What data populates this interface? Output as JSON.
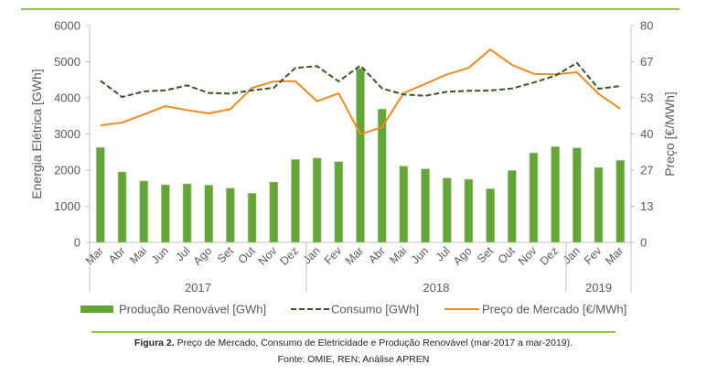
{
  "chart_data": {
    "type": "bar",
    "combo": [
      "bar",
      "line",
      "line"
    ],
    "categories": [
      "Mar",
      "Abr",
      "Mai",
      "Jun",
      "Jul",
      "Ago",
      "Set",
      "Out",
      "Nov",
      "Dez",
      "Jan",
      "Fev",
      "Mar",
      "Abr",
      "Mai",
      "Jun",
      "Jul",
      "Ago",
      "Set",
      "Out",
      "Nov",
      "Dez",
      "Jan",
      "Fev",
      "Mar"
    ],
    "year_groups": [
      {
        "label": "2017",
        "count": 10
      },
      {
        "label": "2018",
        "count": 12
      },
      {
        "label": "2019",
        "count": 3
      }
    ],
    "series": [
      {
        "name": "Produção Renovável [GWh]",
        "type": "bar",
        "axis": "left",
        "color": "#64a537",
        "values": [
          2630,
          1950,
          1700,
          1595,
          1620,
          1585,
          1500,
          1360,
          1670,
          2295,
          2335,
          2235,
          4810,
          3690,
          2110,
          2035,
          1780,
          1745,
          1485,
          1990,
          2475,
          2650,
          2615,
          2070,
          2270
        ]
      },
      {
        "name": "Consumo [GWh]",
        "type": "line",
        "style": "dashed",
        "axis": "left",
        "color": "#375623",
        "values": [
          4473,
          4025,
          4177,
          4210,
          4347,
          4135,
          4118,
          4210,
          4278,
          4828,
          4878,
          4455,
          4894,
          4261,
          4093,
          4058,
          4169,
          4195,
          4203,
          4261,
          4423,
          4615,
          4970,
          4253,
          4329
        ]
      },
      {
        "name": "Preço de Mercado [€/MWh]",
        "type": "line",
        "style": "solid",
        "axis": "right",
        "color": "#f08a1c",
        "values": [
          43.2,
          44.2,
          47.2,
          50.3,
          48.8,
          47.6,
          49.2,
          57.0,
          59.4,
          59.5,
          52.1,
          55.0,
          39.9,
          42.5,
          55.1,
          58.5,
          62.0,
          64.4,
          71.2,
          65.5,
          62.2,
          62.0,
          62.8,
          54.8,
          49.3
        ]
      }
    ],
    "title": "",
    "xlabel": "",
    "ylabel": "Energia Elétrica [GWh]",
    "y2label": "Preço [€/MWh]",
    "ylim": [
      0,
      6000
    ],
    "y2lim": [
      0,
      80
    ],
    "yticks": [
      "0",
      "1000",
      "2000",
      "3000",
      "4000",
      "5000",
      "6000"
    ],
    "y2ticks": [
      "0",
      "13",
      "27",
      "40",
      "53",
      "67",
      "80"
    ],
    "grid": false,
    "legend_position": "bottom"
  },
  "caption": {
    "figure_label": "Figura 2.",
    "figure_text": " Preço de Mercado, Consumo de Eletricidade e Produção Renovável (mar-2017 a mar-2019).",
    "source": "Fonte: OMIE, REN; Análise APREN"
  },
  "colors": {
    "rule": "#8dc63f",
    "axis": "#bfbfbf",
    "text": "#595959"
  }
}
